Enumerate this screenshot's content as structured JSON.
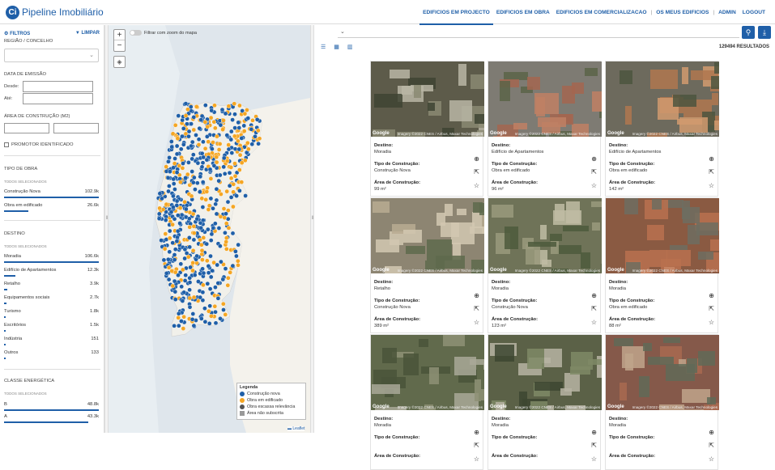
{
  "app": {
    "logo_letter": "Ci",
    "title": "Pipeline Imobiliário"
  },
  "nav": {
    "items": [
      "EDIFICIOS EM PROJECTO",
      "EDIFICIOS EM OBRA",
      "EDIFICIOS EM COMERCIALIZACAO",
      "OS MEUS EDIFICIOS",
      "ADMIN",
      "LOGOUT"
    ],
    "active_index": 0
  },
  "sidebar": {
    "filters_label": "FILTROS",
    "clear_label": "LIMPAR",
    "region_label": "REGIÃO / CONCELHO",
    "emission_label": "DATA DE EMISSÃO",
    "from_label": "Desde:",
    "to_label": "Até:",
    "area_label": "ÁREA DE CONSTRUÇÃO (M2)",
    "promoter_label": "PROMOTOR IDENTIFICADO",
    "obra_section": {
      "title": "TIPO DE OBRA",
      "subtitle": "TODOS SELECIONADOS",
      "rows": [
        {
          "label": "Construção Nova",
          "value": "102.9k",
          "fraction": 1.0
        },
        {
          "label": "Obra em edificado",
          "value": "26.6k",
          "fraction": 0.26
        }
      ]
    },
    "destino_section": {
      "title": "DESTINO",
      "subtitle": "TODOS SELECIONADOS",
      "rows": [
        {
          "label": "Moradia",
          "value": "106.6k",
          "fraction": 1.0
        },
        {
          "label": "Edifício de Apartamentos",
          "value": "12.3k",
          "fraction": 0.12
        },
        {
          "label": "Retalho",
          "value": "3.9k",
          "fraction": 0.037
        },
        {
          "label": "Equipamentos sociais",
          "value": "2.7k",
          "fraction": 0.025
        },
        {
          "label": "Turismo",
          "value": "1.8k",
          "fraction": 0.017
        },
        {
          "label": "Escritórios",
          "value": "1.5k",
          "fraction": 0.014
        },
        {
          "label": "Indústria",
          "value": "151",
          "fraction": 0.0014
        },
        {
          "label": "Outros",
          "value": "133",
          "fraction": 0.0012
        }
      ]
    },
    "energy_section": {
      "title": "CLASSE ENERGÉTICA",
      "subtitle": "TODOS SELECIONADOS",
      "rows": [
        {
          "label": "B",
          "value": "48.8k",
          "fraction": 1.0
        },
        {
          "label": "A",
          "value": "43.3k",
          "fraction": 0.89
        }
      ]
    }
  },
  "map": {
    "zoom_in": "+",
    "zoom_out": "−",
    "toggle_label": "Filtrar com zoom do mapa",
    "legend_title": "Legenda",
    "legend_items": [
      {
        "label": "Construção nova",
        "color": "#1f5fa8",
        "shape": "dot"
      },
      {
        "label": "Obra em edificado",
        "color": "#f5a623",
        "shape": "dot"
      },
      {
        "label": "Obra escassa relevância",
        "color": "#555555",
        "shape": "dot"
      },
      {
        "label": "Área não subscrita",
        "color": "#999999",
        "shape": "square"
      }
    ],
    "attribution": "Leaflet"
  },
  "results": {
    "count": "129494 RESULTADOS",
    "labels": {
      "destino": "Destino:",
      "tipo": "Tipo de Construção:",
      "area": "Área de Construção:"
    },
    "imagery_logo": "Google",
    "imagery_credit": "Imagery ©2022 CNES / Airbus, Maxar Technologies",
    "cards": [
      {
        "destino": "Moradia",
        "tipo": "Construção Nova",
        "area": "99 m²",
        "img": "a"
      },
      {
        "destino": "Edifício de Apartamentos",
        "tipo": "Obra em edificado",
        "area": "96 m²",
        "img": "b"
      },
      {
        "destino": "Edifício de Apartamentos",
        "tipo": "Obra em edificado",
        "area": "142 m²",
        "img": "c"
      },
      {
        "destino": "Retalho",
        "tipo": "Construção Nova",
        "area": "389 m²",
        "img": "d"
      },
      {
        "destino": "Moradia",
        "tipo": "Construção Nova",
        "area": "123 m²",
        "img": "e"
      },
      {
        "destino": "Moradia",
        "tipo": "Obra em edificado",
        "area": "88 m²",
        "img": "f"
      },
      {
        "destino": "Moradia",
        "tipo": "",
        "area": "",
        "img": "g"
      },
      {
        "destino": "Moradia",
        "tipo": "",
        "area": "",
        "img": "h"
      },
      {
        "destino": "Moradia",
        "tipo": "",
        "area": "",
        "img": "i"
      }
    ]
  }
}
